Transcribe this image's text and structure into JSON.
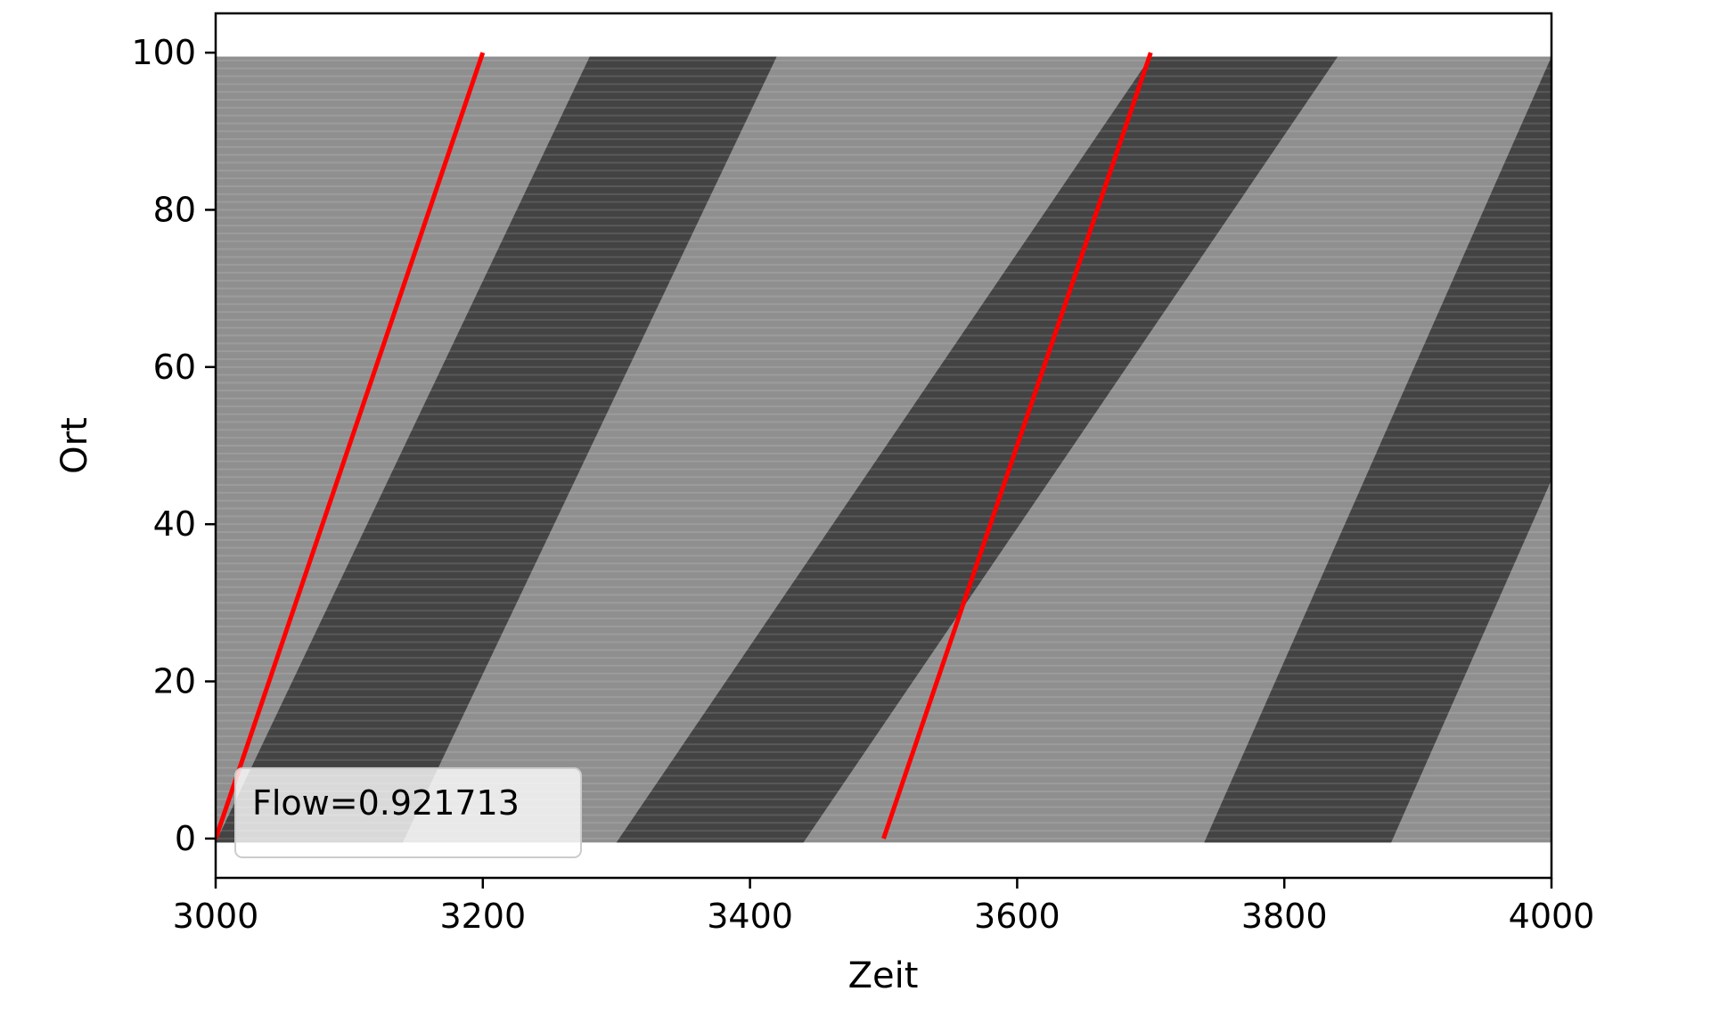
{
  "chart_data": {
    "type": "scatter",
    "title": "",
    "xlabel": "Zeit",
    "ylabel": "Ort",
    "xlim": [
      3000,
      4000
    ],
    "ylim": [
      -5,
      105
    ],
    "xticks": [
      3000,
      3200,
      3400,
      3600,
      3800,
      4000
    ],
    "yticks": [
      0,
      20,
      40,
      60,
      80,
      100
    ],
    "grid": false,
    "legend_position": "lower-left",
    "legend_entries": [
      "Flow=0.921713"
    ],
    "point_color": "#000000",
    "line_color": "#ff0000",
    "scatter_description_bands": [
      {
        "density": "high",
        "t_at_bottom": 3300,
        "t_at_top": 3700
      },
      {
        "density": "high",
        "t_at_bottom": 3740,
        "t_at_top": 4000
      },
      {
        "density": "high",
        "t_at_bottom": 3000,
        "t_at_top": 3280
      }
    ],
    "series": [
      {
        "type": "line",
        "x": [
          3000,
          3200
        ],
        "y": [
          0,
          100
        ]
      },
      {
        "type": "line",
        "x": [
          3500,
          3700
        ],
        "y": [
          0,
          100
        ]
      }
    ]
  }
}
